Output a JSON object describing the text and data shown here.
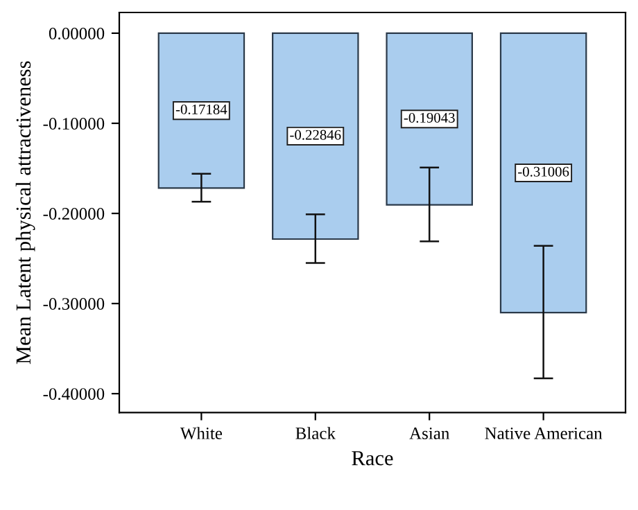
{
  "chart_data": {
    "type": "bar",
    "xlabel": "Race",
    "ylabel": "Mean Latent physical attractiveness",
    "categories": [
      "White",
      "Black",
      "Asian",
      "Native American"
    ],
    "values": [
      -0.17184,
      -0.22846,
      -0.19043,
      -0.31006
    ],
    "errors": [
      [
        -0.187,
        -0.156
      ],
      [
        -0.255,
        -0.201
      ],
      [
        -0.231,
        -0.149
      ],
      [
        -0.383,
        -0.236
      ]
    ],
    "color": "#aacdee",
    "data_labels": true,
    "grid": false,
    "ylim": [
      -0.421,
      0.023
    ],
    "yticks": [
      {
        "value": 0,
        "label": "0.00000"
      },
      {
        "value": -0.1,
        "label": "-0.10000"
      },
      {
        "value": -0.2,
        "label": "-0.20000"
      },
      {
        "value": -0.3,
        "label": "-0.30000"
      },
      {
        "value": -0.4,
        "label": "-0.40000"
      }
    ]
  }
}
